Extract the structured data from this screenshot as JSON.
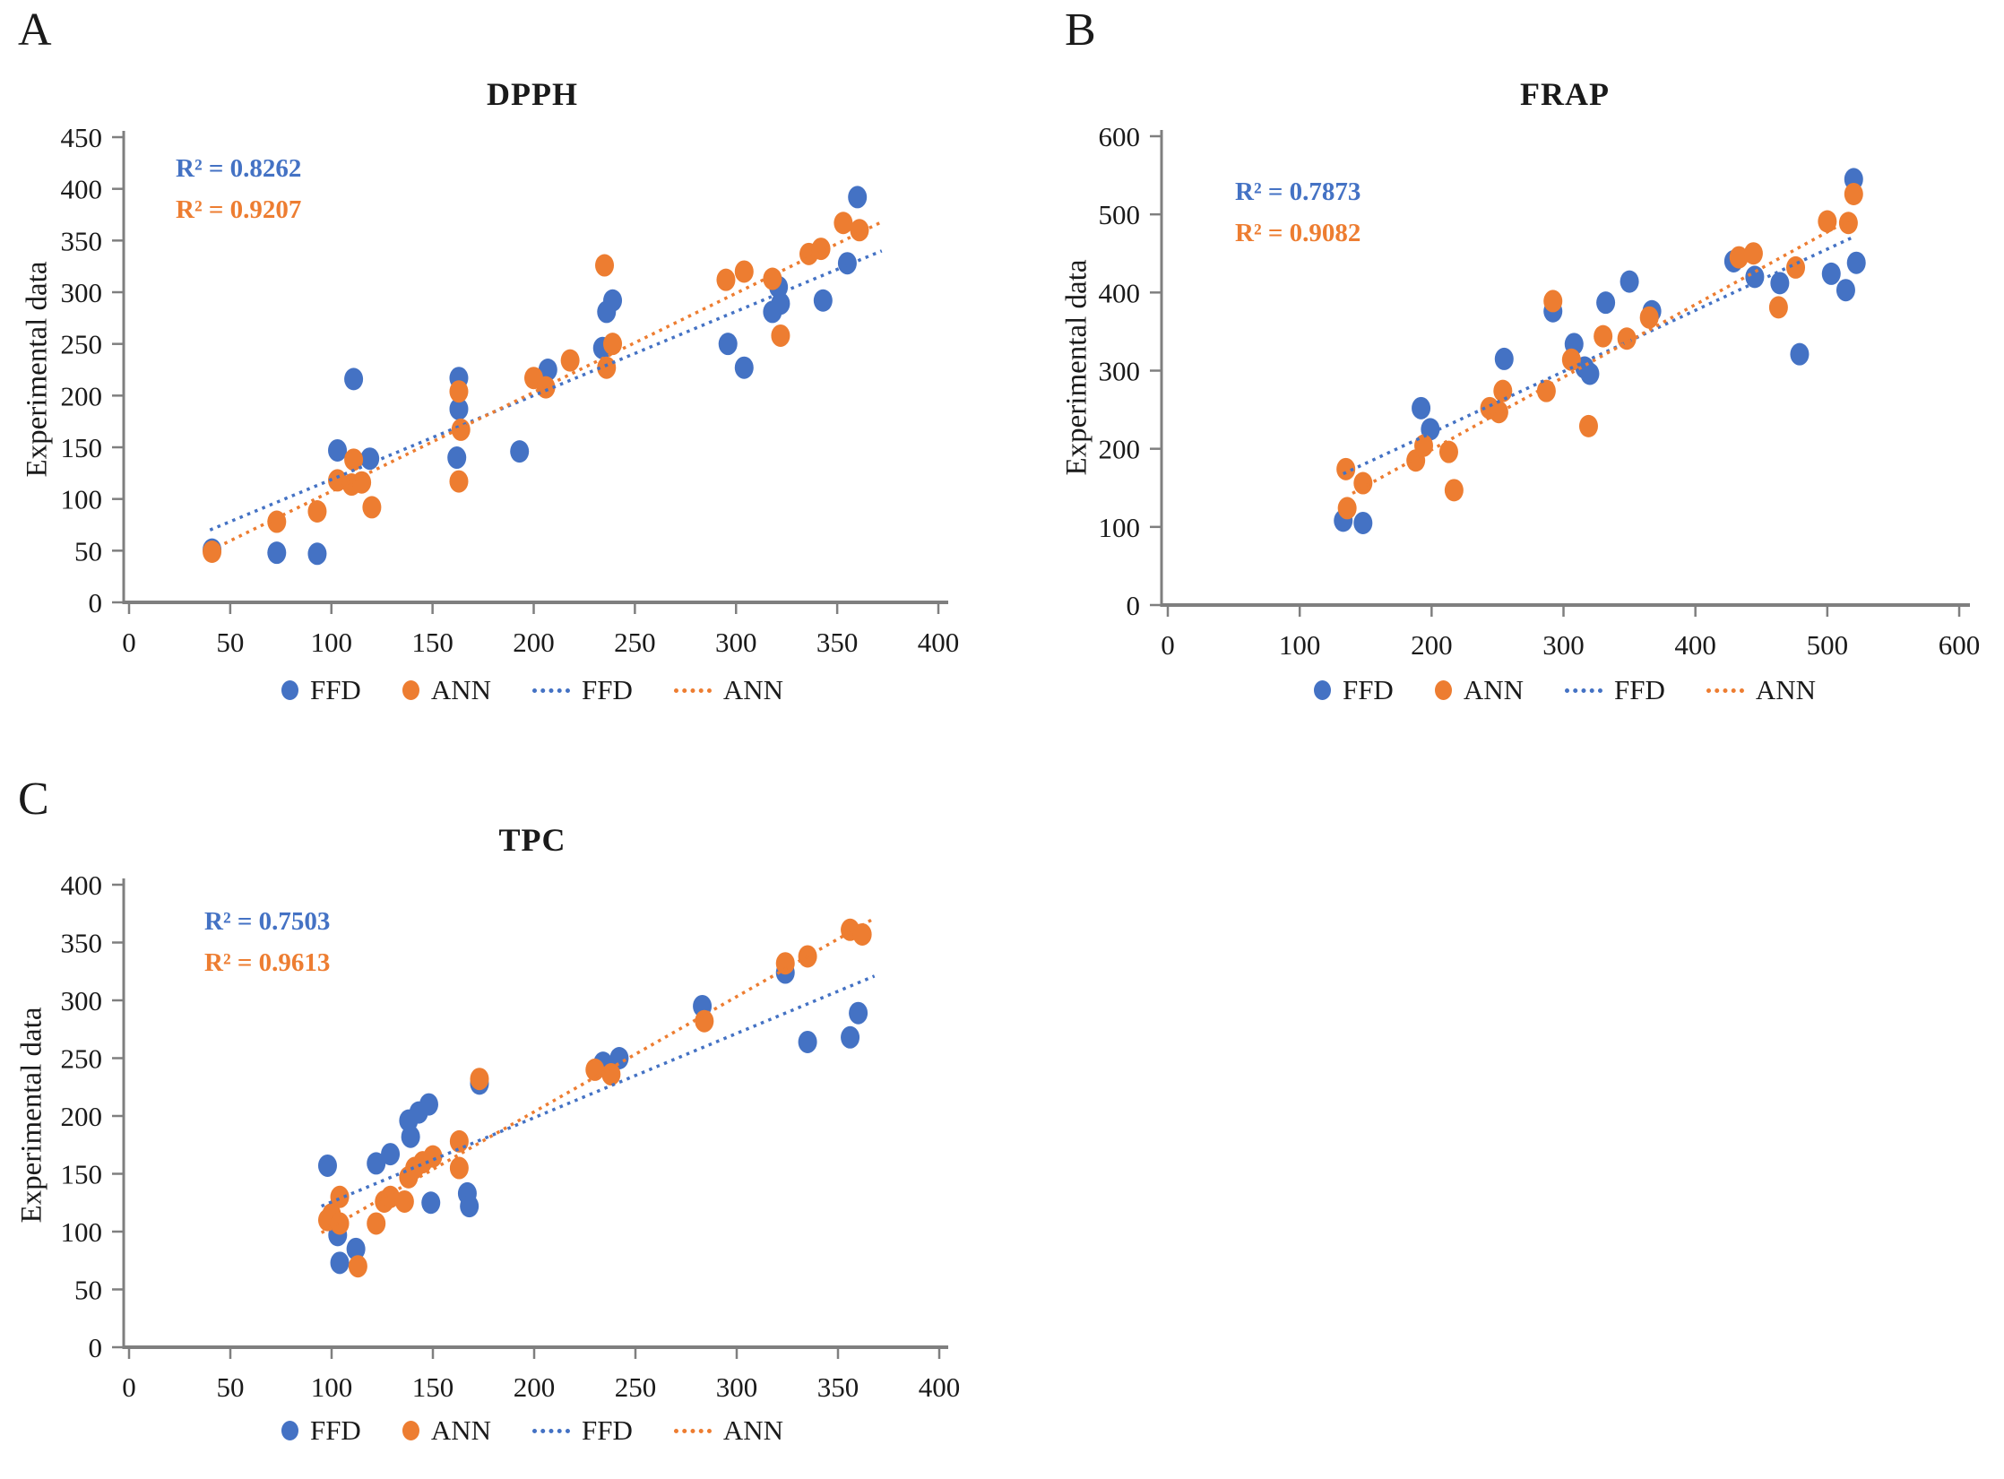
{
  "colors": {
    "ffd_blue": "#4472C4",
    "ann_orange": "#ED7D31",
    "axis_gray": "#7f7f7f",
    "text_black": "#1a1a1a"
  },
  "chart_data": [
    {
      "id": "dpph",
      "panel_letter": "A",
      "type": "scatter",
      "title": "DPPH",
      "xlabel": "",
      "ylabel": "Experimental data",
      "xlim": [
        0,
        400
      ],
      "ylim": [
        0,
        450
      ],
      "xticks": [
        0,
        50,
        100,
        150,
        200,
        250,
        300,
        350,
        400
      ],
      "yticks": [
        0,
        50,
        100,
        150,
        200,
        250,
        300,
        350,
        400,
        450
      ],
      "grid": false,
      "legend_position": "bottom",
      "r2_ffd_label": "R² = 0.8262",
      "r2_ann_label": "R² = 0.9207",
      "r_squared": {
        "ffd": 0.8262,
        "ann": 0.9207
      },
      "legend": [
        "FFD",
        "ANN",
        "FFD",
        "ANN"
      ],
      "series": [
        {
          "name": "FFD",
          "color": "#4472C4",
          "points": [
            [
              41,
              51
            ],
            [
              73,
              48
            ],
            [
              93,
              47
            ],
            [
              103,
              147
            ],
            [
              111,
              216
            ],
            [
              119,
              139
            ],
            [
              162,
              140
            ],
            [
              163,
              187
            ],
            [
              163,
              217
            ],
            [
              193,
              146
            ],
            [
              207,
              225
            ],
            [
              234,
              246
            ],
            [
              236,
              281
            ],
            [
              239,
              292
            ],
            [
              296,
              250
            ],
            [
              304,
              227
            ],
            [
              318,
              281
            ],
            [
              322,
              289
            ],
            [
              321,
              305
            ],
            [
              343,
              292
            ],
            [
              355,
              328
            ],
            [
              360,
              392
            ]
          ]
        },
        {
          "name": "ANN",
          "color": "#ED7D31",
          "points": [
            [
              41,
              49
            ],
            [
              73,
              78
            ],
            [
              93,
              88
            ],
            [
              120,
              92
            ],
            [
              103,
              118
            ],
            [
              110,
              114
            ],
            [
              115,
              116
            ],
            [
              111,
              138
            ],
            [
              163,
              117
            ],
            [
              164,
              167
            ],
            [
              163,
              204
            ],
            [
              200,
              217
            ],
            [
              206,
              208
            ],
            [
              218,
              234
            ],
            [
              235,
              326
            ],
            [
              236,
              227
            ],
            [
              239,
              250
            ],
            [
              295,
              312
            ],
            [
              304,
              320
            ],
            [
              318,
              313
            ],
            [
              322,
              258
            ],
            [
              336,
              337
            ],
            [
              342,
              342
            ],
            [
              353,
              367
            ],
            [
              361,
              360
            ]
          ]
        }
      ],
      "trendlines": [
        {
          "name": "FFD",
          "color": "#4472C4",
          "from": [
            40,
            70
          ],
          "to": [
            372,
            340
          ]
        },
        {
          "name": "ANN",
          "color": "#ED7D31",
          "from": [
            40,
            50
          ],
          "to": [
            372,
            368
          ]
        }
      ]
    },
    {
      "id": "frap",
      "panel_letter": "B",
      "type": "scatter",
      "title": "FRAP",
      "xlabel": "",
      "ylabel": "Experimental data",
      "xlim": [
        0,
        600
      ],
      "ylim": [
        0,
        600
      ],
      "xticks": [
        0,
        100,
        200,
        300,
        400,
        500,
        600
      ],
      "yticks": [
        0,
        100,
        200,
        300,
        400,
        500,
        600
      ],
      "grid": false,
      "legend_position": "bottom",
      "r2_ffd_label": "R² = 0.7873",
      "r2_ann_label": "R² = 0.9082",
      "r_squared": {
        "ffd": 0.7873,
        "ann": 0.9082
      },
      "legend": [
        "FFD",
        "ANN",
        "FFD",
        "ANN"
      ],
      "series": [
        {
          "name": "FFD",
          "color": "#4472C4",
          "points": [
            [
              133,
              108
            ],
            [
              148,
              105
            ],
            [
              192,
              252
            ],
            [
              199,
              225
            ],
            [
              255,
              315
            ],
            [
              292,
              376
            ],
            [
              308,
              334
            ],
            [
              316,
              304
            ],
            [
              320,
              296
            ],
            [
              332,
              387
            ],
            [
              350,
              414
            ],
            [
              367,
              376
            ],
            [
              429,
              440
            ],
            [
              445,
              420
            ],
            [
              464,
              412
            ],
            [
              479,
              321
            ],
            [
              503,
              424
            ],
            [
              514,
              403
            ],
            [
              522,
              438
            ],
            [
              520,
              545
            ]
          ]
        },
        {
          "name": "ANN",
          "color": "#ED7D31",
          "points": [
            [
              136,
              124
            ],
            [
              135,
              174
            ],
            [
              148,
              156
            ],
            [
              188,
              185
            ],
            [
              194,
              204
            ],
            [
              213,
              196
            ],
            [
              217,
              147
            ],
            [
              244,
              252
            ],
            [
              251,
              247
            ],
            [
              254,
              274
            ],
            [
              287,
              274
            ],
            [
              292,
              389
            ],
            [
              306,
              314
            ],
            [
              319,
              229
            ],
            [
              330,
              344
            ],
            [
              348,
              341
            ],
            [
              365,
              368
            ],
            [
              433,
              445
            ],
            [
              444,
              450
            ],
            [
              463,
              381
            ],
            [
              476,
              432
            ],
            [
              500,
              491
            ],
            [
              516,
              489
            ],
            [
              520,
              526
            ]
          ]
        }
      ],
      "trendlines": [
        {
          "name": "FFD",
          "color": "#4472C4",
          "from": [
            133,
            168
          ],
          "to": [
            521,
            472
          ]
        },
        {
          "name": "ANN",
          "color": "#ED7D31",
          "from": [
            140,
            143
          ],
          "to": [
            521,
            497
          ]
        }
      ]
    },
    {
      "id": "tpc",
      "panel_letter": "C",
      "type": "scatter",
      "title": "TPC",
      "xlabel": "",
      "ylabel": "Experimental data",
      "xlim": [
        0,
        400
      ],
      "ylim": [
        0,
        400
      ],
      "xticks": [
        0,
        50,
        100,
        150,
        200,
        250,
        300,
        350,
        400
      ],
      "yticks": [
        0,
        50,
        100,
        150,
        200,
        250,
        300,
        350,
        400
      ],
      "grid": false,
      "legend_position": "bottom",
      "r2_ffd_label": "R² = 0.7503",
      "r2_ann_label": "R² = 0.9613",
      "r_squared": {
        "ffd": 0.7503,
        "ann": 0.9613
      },
      "legend": [
        "FFD",
        "ANN",
        "FFD",
        "ANN"
      ],
      "series": [
        {
          "name": "FFD",
          "color": "#4472C4",
          "points": [
            [
              98,
              157
            ],
            [
              103,
              97
            ],
            [
              112,
              85
            ],
            [
              104,
              73
            ],
            [
              122,
              159
            ],
            [
              129,
              167
            ],
            [
              139,
              182
            ],
            [
              138,
              196
            ],
            [
              143,
              203
            ],
            [
              148,
              210
            ],
            [
              149,
              125
            ],
            [
              167,
              133
            ],
            [
              168,
              122
            ],
            [
              173,
              228
            ],
            [
              234,
              246
            ],
            [
              242,
              250
            ],
            [
              283,
              295
            ],
            [
              324,
              324
            ],
            [
              335,
              264
            ],
            [
              356,
              268
            ],
            [
              360,
              289
            ]
          ]
        },
        {
          "name": "ANN",
          "color": "#ED7D31",
          "points": [
            [
              98,
              110
            ],
            [
              100,
              115
            ],
            [
              104,
              107
            ],
            [
              104,
              130
            ],
            [
              113,
              70
            ],
            [
              122,
              107
            ],
            [
              126,
              126
            ],
            [
              129,
              130
            ],
            [
              136,
              126
            ],
            [
              138,
              147
            ],
            [
              141,
              155
            ],
            [
              145,
              160
            ],
            [
              150,
              165
            ],
            [
              163,
              155
            ],
            [
              163,
              178
            ],
            [
              173,
              232
            ],
            [
              230,
              240
            ],
            [
              238,
              236
            ],
            [
              284,
              282
            ],
            [
              324,
              332
            ],
            [
              335,
              338
            ],
            [
              356,
              361
            ],
            [
              362,
              357
            ]
          ]
        }
      ],
      "trendlines": [
        {
          "name": "FFD",
          "color": "#4472C4",
          "from": [
            95,
            122
          ],
          "to": [
            368,
            321
          ]
        },
        {
          "name": "ANN",
          "color": "#ED7D31",
          "from": [
            95,
            99
          ],
          "to": [
            368,
            371
          ]
        }
      ]
    }
  ]
}
